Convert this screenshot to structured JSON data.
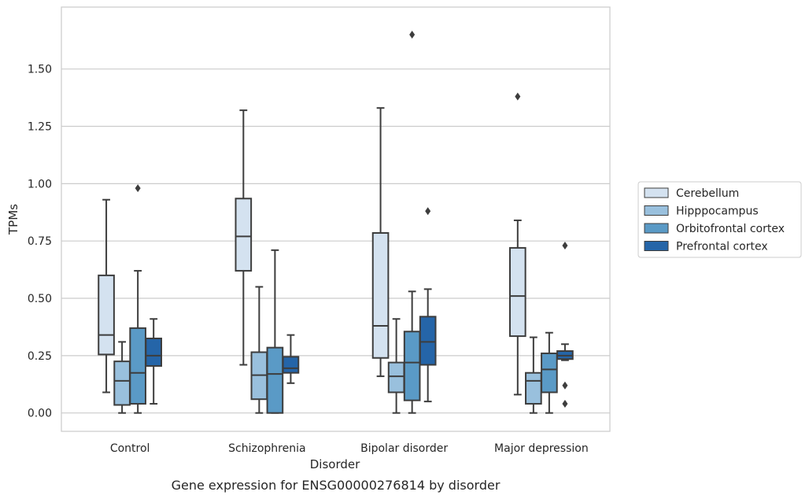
{
  "chart_data": {
    "type": "box",
    "caption": "Gene expression for ENSG00000276814 by disorder",
    "xlabel": "Disorder",
    "ylabel": "TPMs",
    "ylim": [
      -0.08,
      1.77
    ],
    "yticks": [
      "0.00",
      "0.25",
      "0.50",
      "0.75",
      "1.00",
      "1.25",
      "1.50"
    ],
    "grid": true,
    "legend_position": "right",
    "categories": [
      "Control",
      "Schizophrenia",
      "Bipolar disorder",
      "Major depression"
    ],
    "series": [
      {
        "name": "Cerebellum",
        "color": "#d4e2f0",
        "boxes": [
          {
            "whislo": 0.09,
            "q1": 0.255,
            "median": 0.34,
            "q3": 0.6,
            "whishi": 0.93,
            "fliers": []
          },
          {
            "whislo": 0.21,
            "q1": 0.62,
            "median": 0.77,
            "q3": 0.935,
            "whishi": 1.32,
            "fliers": []
          },
          {
            "whislo": 0.16,
            "q1": 0.24,
            "median": 0.38,
            "q3": 0.785,
            "whishi": 1.33,
            "fliers": []
          },
          {
            "whislo": 0.08,
            "q1": 0.335,
            "median": 0.51,
            "q3": 0.72,
            "whishi": 0.84,
            "fliers": [
              1.38
            ]
          }
        ]
      },
      {
        "name": "Hipppocampus",
        "color": "#99c0dd",
        "boxes": [
          {
            "whislo": 0.0,
            "q1": 0.035,
            "median": 0.14,
            "q3": 0.225,
            "whishi": 0.31,
            "fliers": []
          },
          {
            "whislo": 0.0,
            "q1": 0.06,
            "median": 0.165,
            "q3": 0.265,
            "whishi": 0.55,
            "fliers": []
          },
          {
            "whislo": 0.0,
            "q1": 0.09,
            "median": 0.16,
            "q3": 0.22,
            "whishi": 0.41,
            "fliers": []
          },
          {
            "whislo": 0.0,
            "q1": 0.04,
            "median": 0.14,
            "q3": 0.175,
            "whishi": 0.33,
            "fliers": []
          }
        ]
      },
      {
        "name": "Orbitofrontal cortex",
        "color": "#5a9ac6",
        "boxes": [
          {
            "whislo": 0.0,
            "q1": 0.04,
            "median": 0.175,
            "q3": 0.37,
            "whishi": 0.62,
            "fliers": [
              0.98
            ]
          },
          {
            "whislo": 0.0,
            "q1": 0.0,
            "median": 0.17,
            "q3": 0.285,
            "whishi": 0.71,
            "fliers": []
          },
          {
            "whislo": 0.0,
            "q1": 0.055,
            "median": 0.22,
            "q3": 0.355,
            "whishi": 0.53,
            "fliers": [
              1.65
            ]
          },
          {
            "whislo": 0.0,
            "q1": 0.09,
            "median": 0.19,
            "q3": 0.26,
            "whishi": 0.35,
            "fliers": []
          }
        ]
      },
      {
        "name": "Prefrontal cortex",
        "color": "#2565a8",
        "boxes": [
          {
            "whislo": 0.04,
            "q1": 0.205,
            "median": 0.25,
            "q3": 0.325,
            "whishi": 0.41,
            "fliers": []
          },
          {
            "whislo": 0.13,
            "q1": 0.175,
            "median": 0.195,
            "q3": 0.245,
            "whishi": 0.34,
            "fliers": []
          },
          {
            "whislo": 0.05,
            "q1": 0.21,
            "median": 0.31,
            "q3": 0.42,
            "whishi": 0.54,
            "fliers": [
              0.88
            ]
          },
          {
            "whislo": 0.23,
            "q1": 0.235,
            "median": 0.25,
            "q3": 0.27,
            "whishi": 0.3,
            "fliers": [
              0.73,
              0.12,
              0.04
            ]
          }
        ]
      }
    ]
  }
}
